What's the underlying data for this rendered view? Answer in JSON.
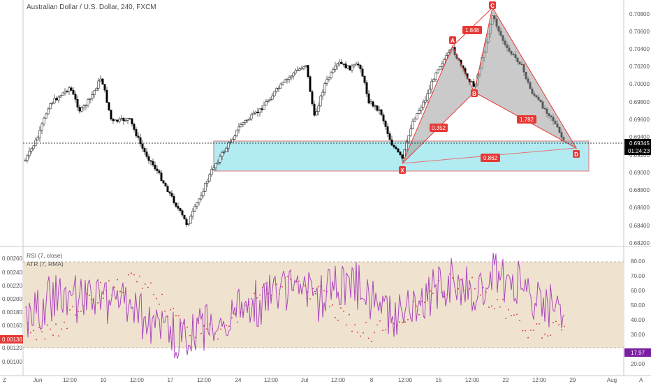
{
  "title": "Australian Dollar / U.S. Dollar, 240, FXCM",
  "price_axis": [
    "0.70800",
    "0.70600",
    "0.70400",
    "0.70200",
    "0.70000",
    "0.69800",
    "0.69600",
    "0.69400",
    "0.69200",
    "0.69000",
    "0.68800",
    "0.68600",
    "0.68400",
    "0.68200"
  ],
  "price_tag": "0.69345",
  "countdown_tag": "01:24:23",
  "time_axis": [
    "Jun",
    "12:00",
    "10",
    "12:00",
    "17",
    "12:00",
    "24",
    "12:00",
    "Jul",
    "12:00",
    "8",
    "12:00",
    "15",
    "12:00",
    "22",
    "12:00",
    "29",
    "Aug"
  ],
  "corner_left": "Z",
  "corner_right": "A",
  "pattern": {
    "points": [
      "X",
      "A",
      "B",
      "C",
      "D"
    ],
    "ratios": [
      "1.848",
      "0.352",
      "1.782",
      "0.862"
    ]
  },
  "indicators": {
    "rsi_label": "RSI (7, close)",
    "atr_label": "ATR (7, RMA)",
    "atr_axis": [
      "0.00260",
      "0.00240",
      "0.00220",
      "0.00200",
      "0.00180",
      "0.00160",
      "0.00140",
      "0.00120",
      "0.00100"
    ],
    "atr_tag": "0.00136",
    "rsi_axis": [
      "80.00",
      "70.00",
      "60.00",
      "50.00",
      "40.00",
      "30.00",
      "20.00"
    ],
    "rsi_tag": "17.97"
  },
  "colors": {
    "zone_fill": "#b2ebf2",
    "zone_border": "#e57373",
    "pattern_fill": "#9e9e9e",
    "pattern_line": "#e53935",
    "label_bg": "#e53935",
    "rsi_line": "#ab47bc",
    "rsi_band": "#efe3cf",
    "atr_dots": "#d32f2f",
    "candle_up": "#ffffff",
    "candle_down": "#000000",
    "rsi_tag_bg": "#7b1fa2",
    "atr_tag_bg": "#e53935"
  }
}
